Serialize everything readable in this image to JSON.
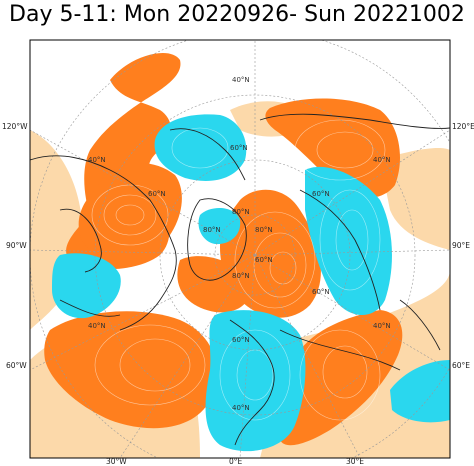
{
  "title": "Day 5-11: Mon 20220926- Sun 20221002",
  "colors": {
    "positive_anomaly": "#ff7f1e",
    "weak_positive": "#fcd9aa",
    "negative_anomaly": "#2ad7ee",
    "ocean": "#ffffff",
    "frame": "#000000"
  },
  "edge_labels": {
    "left_120w": "120°W",
    "left_90w": "90°W",
    "left_60w": "60°W",
    "bottom_30w": "30°W",
    "bottom_0": "0°E",
    "bottom_30e": "30°E",
    "right_120e": "120°E",
    "right_90e": "90°E",
    "right_60e": "60°E"
  },
  "lat_labels": {
    "n40_top": "40°N",
    "n60_top": "60°N",
    "n80_top": "80°N",
    "n40_left": "40°N",
    "n60_left": "60°N",
    "n40_lower_left": "40°N",
    "n60_right": "60°N",
    "n40_right": "40°N",
    "n60_bottom": "60°N",
    "n40_bottom": "40°N",
    "n60_lower_right": "60°N",
    "n40_lower_right": "40°N",
    "n80_left": "80°N",
    "n80_right": "80°N",
    "n80_bottom": "80°N",
    "n60_ring_right": "60°N"
  }
}
